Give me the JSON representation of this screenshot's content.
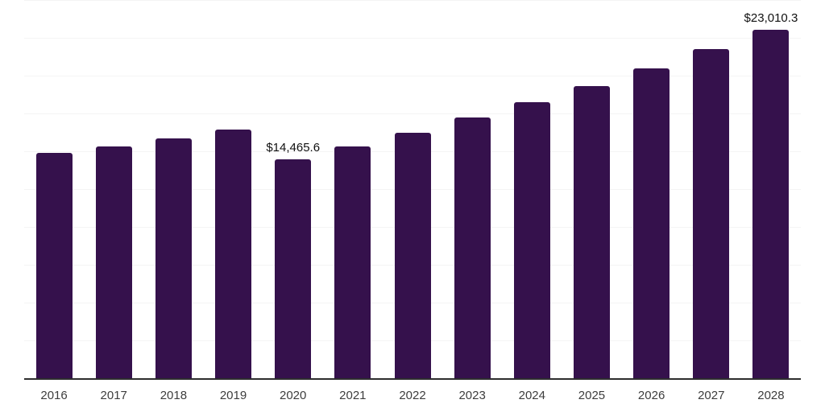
{
  "chart_data": {
    "type": "bar",
    "title": "",
    "xlabel": "",
    "ylabel": "",
    "categories": [
      "2016",
      "2017",
      "2018",
      "2019",
      "2020",
      "2021",
      "2022",
      "2023",
      "2024",
      "2025",
      "2026",
      "2027",
      "2028"
    ],
    "values": [
      14900,
      15330,
      15870,
      16450,
      14465.6,
      15330,
      16220,
      17220,
      18240,
      19300,
      20460,
      21740,
      23010.3
    ],
    "data_labels": [
      {
        "category": "2020",
        "text": "$14,465.6"
      },
      {
        "category": "2028",
        "text": "$23,010.3"
      }
    ],
    "ylim": [
      0,
      25000
    ],
    "gridline_step": 2500,
    "grid": true,
    "legend": false,
    "colors": {
      "bar": "#35114C",
      "axis_line": "#2e2e2e",
      "gridline": "#f4f4f4",
      "tick_label": "#3d3d3d",
      "data_label": "#111111",
      "background": "#ffffff"
    }
  }
}
